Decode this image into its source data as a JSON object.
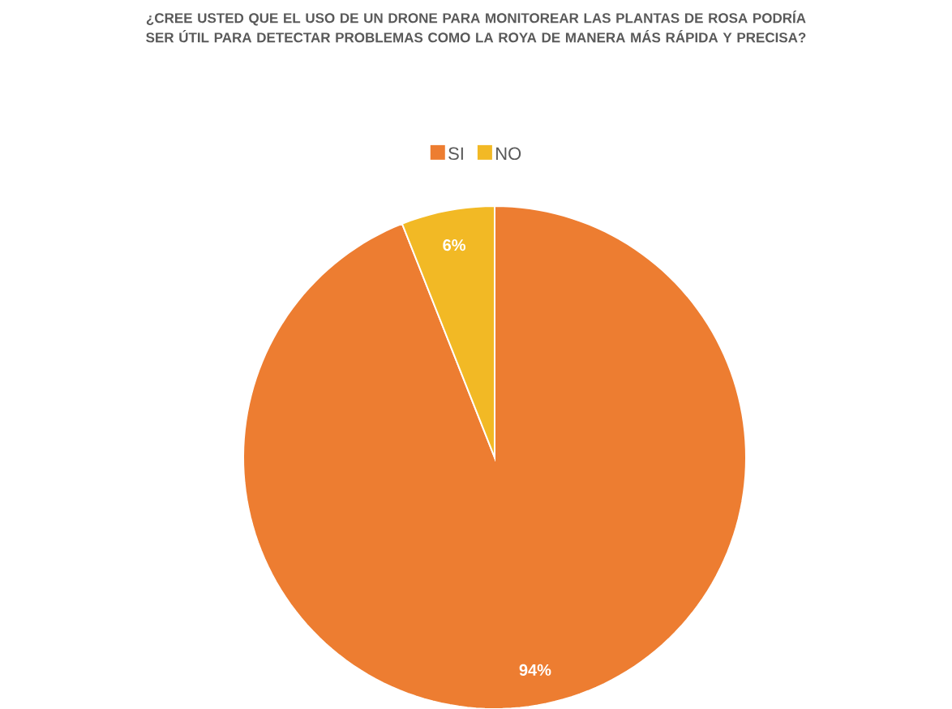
{
  "chart_data": {
    "type": "pie",
    "title": "¿CREE USTED QUE EL USO DE UN DRONE PARA MONITOREAR LAS PLANTAS DE ROSA PODRÍA SER ÚTIL PARA DETECTAR PROBLEMAS COMO LA ROYA DE MANERA MÁS RÁPIDA Y PRECISA?",
    "categories": [
      "SI",
      "NO"
    ],
    "values": [
      94,
      6
    ],
    "colors": [
      "#ed7d31",
      "#f2b925"
    ],
    "value_labels": [
      "94%",
      "6%"
    ],
    "legend": "top"
  }
}
